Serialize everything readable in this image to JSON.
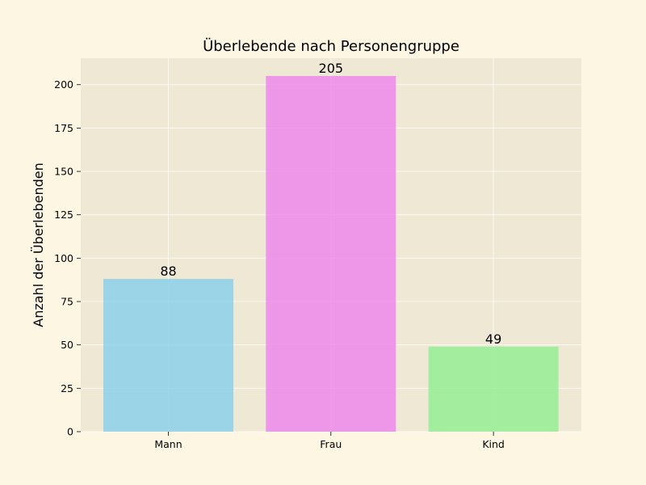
{
  "chart_data": {
    "type": "bar",
    "title": "Überlebende nach Personengruppe",
    "xlabel": "",
    "ylabel": "Anzahl der Überlebenden",
    "categories": [
      "Mann",
      "Frau",
      "Kind"
    ],
    "values": [
      88,
      205,
      49
    ],
    "bar_colors": [
      "#87ceeb",
      "#ee82ee",
      "#90ee90"
    ],
    "ylim": [
      0,
      215.25
    ],
    "yticks": [
      0,
      25,
      50,
      75,
      100,
      125,
      150,
      175,
      200
    ],
    "grid": true,
    "legend": "none",
    "background_color": "#fdf6e3",
    "plot_background_color": "#eee8d5"
  }
}
